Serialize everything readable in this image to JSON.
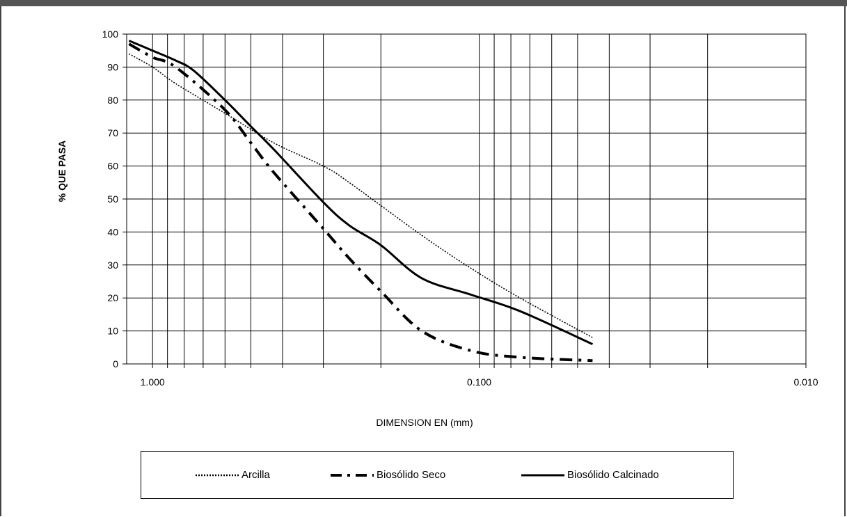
{
  "chart_data": {
    "type": "line",
    "xlabel": "DIMENSION EN (mm)",
    "ylabel": "% QUE PASA",
    "x_scale": "log",
    "x_reversed": true,
    "xlim": [
      1.2,
      0.01
    ],
    "ylim": [
      0,
      100
    ],
    "x_tick_labels": [
      {
        "value": 1.0,
        "label": "1.000"
      },
      {
        "value": 0.1,
        "label": "0.100"
      },
      {
        "value": 0.01,
        "label": "0.010"
      }
    ],
    "y_ticks": [
      0,
      10,
      20,
      30,
      40,
      50,
      60,
      70,
      80,
      90,
      100
    ],
    "grid": true,
    "legend_position": "bottom",
    "series": [
      {
        "name": "Arcilla",
        "line_style": "dotted",
        "x": [
          1.18,
          1.0,
          0.85,
          0.6,
          0.425,
          0.3,
          0.25,
          0.15,
          0.106,
          0.075,
          0.045
        ],
        "y": [
          94,
          90,
          85,
          76,
          67,
          60,
          55,
          39,
          29,
          20,
          8
        ]
      },
      {
        "name": "Biosólido Seco",
        "line_style": "dash-dot",
        "x": [
          1.18,
          1.0,
          0.85,
          0.6,
          0.5,
          0.425,
          0.3,
          0.25,
          0.2,
          0.15,
          0.106,
          0.075,
          0.045
        ],
        "y": [
          97,
          93,
          90,
          77,
          67,
          58,
          41,
          32,
          22,
          10,
          4,
          2,
          1
        ]
      },
      {
        "name": "Biosólido Calcinado",
        "line_style": "solid",
        "x": [
          1.18,
          1.0,
          0.85,
          0.75,
          0.6,
          0.5,
          0.425,
          0.3,
          0.25,
          0.2,
          0.15,
          0.106,
          0.075,
          0.045
        ],
        "y": [
          98,
          95,
          92,
          89,
          80,
          72,
          65,
          49,
          42,
          36,
          26,
          21,
          16,
          6
        ]
      }
    ]
  }
}
